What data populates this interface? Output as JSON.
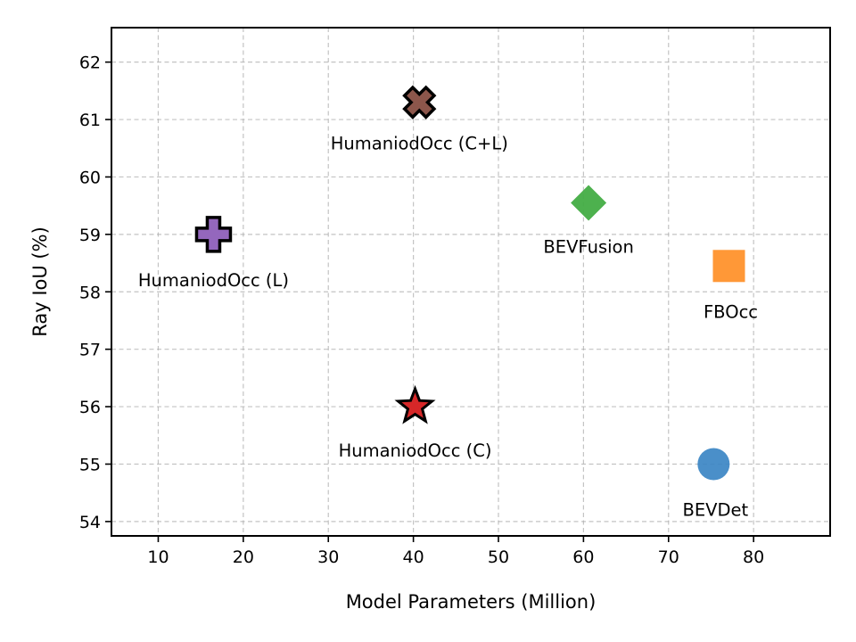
{
  "chart_data": {
    "type": "scatter",
    "xlabel": "Model Parameters (Million)",
    "ylabel": "Ray IoU (%)",
    "xlim": [
      4.5,
      89
    ],
    "ylim": [
      53.75,
      62.6
    ],
    "xticks": [
      10,
      20,
      30,
      40,
      50,
      60,
      70,
      80
    ],
    "yticks": [
      54,
      55,
      56,
      57,
      58,
      59,
      60,
      61,
      62
    ],
    "grid": true,
    "points": [
      {
        "label": "BEVDet",
        "x": 75.3,
        "y": 55.0,
        "marker": "circle",
        "color": "#3b86c4"
      },
      {
        "label": "FBOcc",
        "x": 77.1,
        "y": 58.45,
        "marker": "square",
        "color": "#ff8f26"
      },
      {
        "label": "BEVFusion",
        "x": 60.6,
        "y": 59.55,
        "marker": "diamond",
        "color": "#43ad45"
      },
      {
        "label": "HumaniodOcc (C)",
        "x": 40.2,
        "y": 56.0,
        "marker": "star",
        "color": "#d62728"
      },
      {
        "label": "HumaniodOcc (L)",
        "x": 16.5,
        "y": 59.0,
        "marker": "plus",
        "color": "#9467bd"
      },
      {
        "label": "HumaniodOcc (C+L)",
        "x": 40.7,
        "y": 61.3,
        "marker": "x",
        "color": "#8c564b"
      }
    ]
  }
}
